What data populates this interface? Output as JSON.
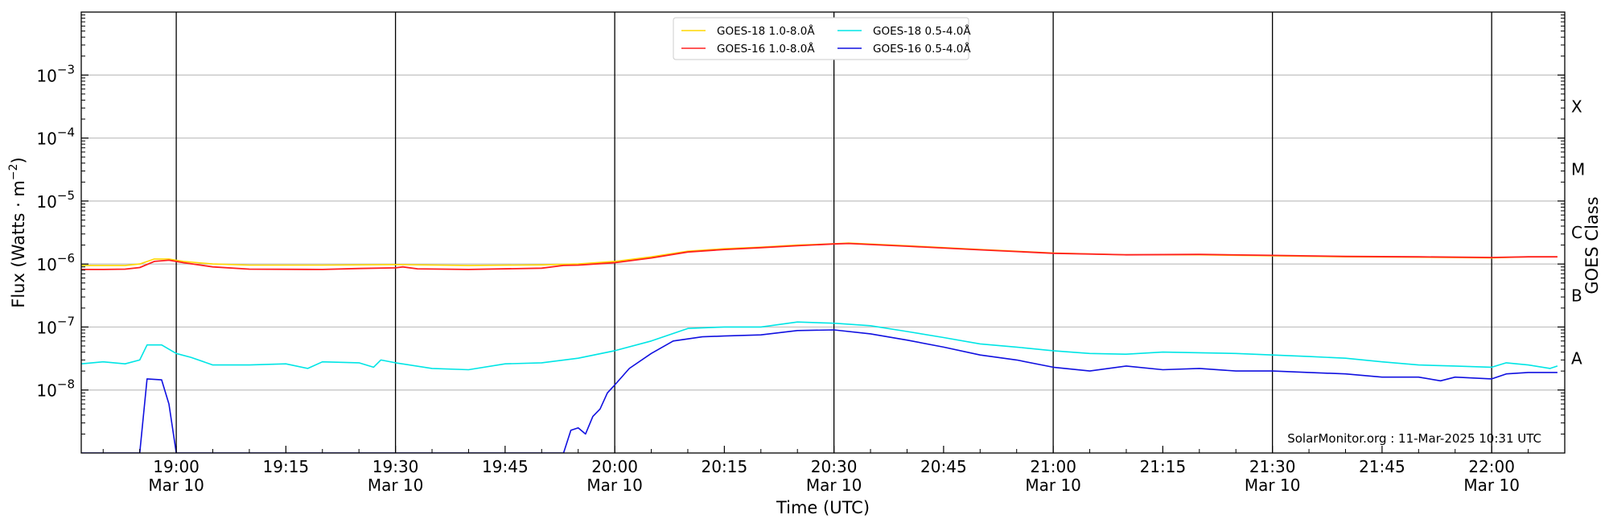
{
  "chart_data": {
    "type": "line",
    "xlabel": "Time (UTC)",
    "ylabel_base": "Flux (Watts · m",
    "ylabel_exp": "−2",
    "ylabel_tail": ")",
    "right_label": "GOES Class",
    "credit": "SolarMonitor.org : 11-Mar-2025 10:31 UTC",
    "xlim": [
      "2025-03-10 18:47",
      "2025-03-10 22:10"
    ],
    "ylim_log10": [
      -9,
      -2
    ],
    "yscale": "log",
    "grid": "horizontal at decades; vertical at half-hours",
    "legend_position": "top-center",
    "x_ticks": [
      {
        "time": "2025-03-10 19:00",
        "line1": "19:00",
        "line2": "Mar 10",
        "major": true
      },
      {
        "time": "2025-03-10 19:15",
        "line1": "19:15",
        "line2": "",
        "major": false
      },
      {
        "time": "2025-03-10 19:30",
        "line1": "19:30",
        "line2": "Mar 10",
        "major": true
      },
      {
        "time": "2025-03-10 19:45",
        "line1": "19:45",
        "line2": "",
        "major": false
      },
      {
        "time": "2025-03-10 20:00",
        "line1": "20:00",
        "line2": "Mar 10",
        "major": true
      },
      {
        "time": "2025-03-10 20:15",
        "line1": "20:15",
        "line2": "",
        "major": false
      },
      {
        "time": "2025-03-10 20:30",
        "line1": "20:30",
        "line2": "Mar 10",
        "major": true
      },
      {
        "time": "2025-03-10 20:45",
        "line1": "20:45",
        "line2": "",
        "major": false
      },
      {
        "time": "2025-03-10 21:00",
        "line1": "21:00",
        "line2": "Mar 10",
        "major": true
      },
      {
        "time": "2025-03-10 21:15",
        "line1": "21:15",
        "line2": "",
        "major": false
      },
      {
        "time": "2025-03-10 21:30",
        "line1": "21:30",
        "line2": "Mar 10",
        "major": true
      },
      {
        "time": "2025-03-10 21:45",
        "line1": "21:45",
        "line2": "",
        "major": false
      },
      {
        "time": "2025-03-10 22:00",
        "line1": "22:00",
        "line2": "Mar 10",
        "major": true
      }
    ],
    "y_ticks": [
      {
        "exp": -8,
        "base": "10",
        "sup": "−8"
      },
      {
        "exp": -7,
        "base": "10",
        "sup": "−7"
      },
      {
        "exp": -6,
        "base": "10",
        "sup": "−6"
      },
      {
        "exp": -5,
        "base": "10",
        "sup": "−5"
      },
      {
        "exp": -4,
        "base": "10",
        "sup": "−4"
      },
      {
        "exp": -3,
        "base": "10",
        "sup": "−3"
      }
    ],
    "goes_classes": [
      {
        "label": "A",
        "log_flux": -7.5
      },
      {
        "label": "B",
        "log_flux": -6.5
      },
      {
        "label": "C",
        "log_flux": -5.5
      },
      {
        "label": "M",
        "log_flux": -4.5
      },
      {
        "label": "X",
        "log_flux": -3.5
      }
    ],
    "series": [
      {
        "name": "GOES-18 1.0-8.0Å",
        "color": "#ffd700",
        "points": [
          [
            "18:47",
            9.5e-07
          ],
          [
            "18:50",
            9.5e-07
          ],
          [
            "18:53",
            9.5e-07
          ],
          [
            "18:55",
            1e-06
          ],
          [
            "18:57",
            1.2e-06
          ],
          [
            "18:59",
            1.2e-06
          ],
          [
            "19:01",
            1.1e-06
          ],
          [
            "19:05",
            1e-06
          ],
          [
            "19:10",
            9.6e-07
          ],
          [
            "19:20",
            9.6e-07
          ],
          [
            "19:30",
            9.8e-07
          ],
          [
            "19:40",
            9.5e-07
          ],
          [
            "19:50",
            9.7e-07
          ],
          [
            "19:55",
            1e-06
          ],
          [
            "20:00",
            1.1e-06
          ],
          [
            "20:05",
            1.3e-06
          ],
          [
            "20:10",
            1.6e-06
          ],
          [
            "20:15",
            1.75e-06
          ],
          [
            "20:20",
            1.85e-06
          ],
          [
            "20:25",
            2e-06
          ],
          [
            "20:30",
            2.1e-06
          ],
          [
            "20:32",
            2.15e-06
          ],
          [
            "20:40",
            1.95e-06
          ],
          [
            "20:50",
            1.7e-06
          ],
          [
            "21:00",
            1.5e-06
          ],
          [
            "21:10",
            1.4e-06
          ],
          [
            "21:20",
            1.4e-06
          ],
          [
            "21:30",
            1.35e-06
          ],
          [
            "21:40",
            1.3e-06
          ],
          [
            "21:50",
            1.28e-06
          ],
          [
            "22:00",
            1.25e-06
          ],
          [
            "22:05",
            1.3e-06
          ],
          [
            "22:09",
            1.3e-06
          ]
        ]
      },
      {
        "name": "GOES-16 1.0-8.0Å",
        "color": "#ff2020",
        "points": [
          [
            "18:47",
            8.2e-07
          ],
          [
            "18:50",
            8.2e-07
          ],
          [
            "18:53",
            8.3e-07
          ],
          [
            "18:55",
            8.8e-07
          ],
          [
            "18:57",
            1.1e-06
          ],
          [
            "18:59",
            1.15e-06
          ],
          [
            "19:01",
            1.05e-06
          ],
          [
            "19:05",
            9e-07
          ],
          [
            "19:10",
            8.3e-07
          ],
          [
            "19:20",
            8.2e-07
          ],
          [
            "19:25",
            8.5e-07
          ],
          [
            "19:30",
            8.7e-07
          ],
          [
            "19:31",
            9e-07
          ],
          [
            "19:33",
            8.4e-07
          ],
          [
            "19:40",
            8.2e-07
          ],
          [
            "19:50",
            8.6e-07
          ],
          [
            "19:53",
            9.5e-07
          ],
          [
            "19:55",
            9.6e-07
          ],
          [
            "20:00",
            1.05e-06
          ],
          [
            "20:05",
            1.25e-06
          ],
          [
            "20:10",
            1.55e-06
          ],
          [
            "20:15",
            1.7e-06
          ],
          [
            "20:20",
            1.82e-06
          ],
          [
            "20:25",
            1.95e-06
          ],
          [
            "20:30",
            2.08e-06
          ],
          [
            "20:32",
            2.12e-06
          ],
          [
            "20:40",
            1.92e-06
          ],
          [
            "20:50",
            1.68e-06
          ],
          [
            "21:00",
            1.48e-06
          ],
          [
            "21:10",
            1.4e-06
          ],
          [
            "21:20",
            1.42e-06
          ],
          [
            "21:30",
            1.37e-06
          ],
          [
            "21:40",
            1.32e-06
          ],
          [
            "21:50",
            1.3e-06
          ],
          [
            "22:00",
            1.27e-06
          ],
          [
            "22:05",
            1.3e-06
          ],
          [
            "22:09",
            1.3e-06
          ]
        ]
      },
      {
        "name": "GOES-18 0.5-4.0Å",
        "color": "#00e5e5",
        "points": [
          [
            "18:47",
            2.6e-08
          ],
          [
            "18:50",
            2.8e-08
          ],
          [
            "18:53",
            2.6e-08
          ],
          [
            "18:55",
            3e-08
          ],
          [
            "18:56",
            5.2e-08
          ],
          [
            "18:58",
            5.2e-08
          ],
          [
            "19:00",
            3.8e-08
          ],
          [
            "19:02",
            3.3e-08
          ],
          [
            "19:05",
            2.5e-08
          ],
          [
            "19:10",
            2.5e-08
          ],
          [
            "19:15",
            2.6e-08
          ],
          [
            "19:18",
            2.2e-08
          ],
          [
            "19:20",
            2.8e-08
          ],
          [
            "19:25",
            2.7e-08
          ],
          [
            "19:27",
            2.3e-08
          ],
          [
            "19:28",
            3e-08
          ],
          [
            "19:30",
            2.7e-08
          ],
          [
            "19:35",
            2.2e-08
          ],
          [
            "19:40",
            2.1e-08
          ],
          [
            "19:45",
            2.6e-08
          ],
          [
            "19:50",
            2.7e-08
          ],
          [
            "19:55",
            3.2e-08
          ],
          [
            "20:00",
            4.2e-08
          ],
          [
            "20:05",
            6e-08
          ],
          [
            "20:10",
            9.5e-08
          ],
          [
            "20:15",
            1e-07
          ],
          [
            "20:20",
            1e-07
          ],
          [
            "20:25",
            1.2e-07
          ],
          [
            "20:30",
            1.15e-07
          ],
          [
            "20:35",
            1.05e-07
          ],
          [
            "20:40",
            8.5e-08
          ],
          [
            "20:45",
            6.8e-08
          ],
          [
            "20:50",
            5.4e-08
          ],
          [
            "20:55",
            4.8e-08
          ],
          [
            "21:00",
            4.2e-08
          ],
          [
            "21:05",
            3.8e-08
          ],
          [
            "21:10",
            3.7e-08
          ],
          [
            "21:15",
            4e-08
          ],
          [
            "21:20",
            3.9e-08
          ],
          [
            "21:25",
            3.8e-08
          ],
          [
            "21:30",
            3.6e-08
          ],
          [
            "21:35",
            3.4e-08
          ],
          [
            "21:40",
            3.2e-08
          ],
          [
            "21:45",
            2.8e-08
          ],
          [
            "21:50",
            2.5e-08
          ],
          [
            "21:55",
            2.4e-08
          ],
          [
            "22:00",
            2.3e-08
          ],
          [
            "22:02",
            2.7e-08
          ],
          [
            "22:05",
            2.5e-08
          ],
          [
            "22:08",
            2.2e-08
          ],
          [
            "22:09",
            2.4e-08
          ]
        ]
      },
      {
        "name": "GOES-16 0.5-4.0Å",
        "color": "#1010e0",
        "points": [
          [
            "18:47",
            1e-09
          ],
          [
            "18:55",
            1e-09
          ],
          [
            "18:56",
            1.5e-08
          ],
          [
            "18:58",
            1.45e-08
          ],
          [
            "18:59",
            6e-09
          ],
          [
            "19:00",
            1e-09
          ],
          [
            "19:53",
            1e-09
          ],
          [
            "19:54",
            2.3e-09
          ],
          [
            "19:55",
            2.5e-09
          ],
          [
            "19:56",
            2e-09
          ],
          [
            "19:57",
            3.8e-09
          ],
          [
            "19:58",
            5e-09
          ],
          [
            "19:59",
            9e-09
          ],
          [
            "20:00",
            1.2e-08
          ],
          [
            "20:02",
            2.2e-08
          ],
          [
            "20:05",
            3.8e-08
          ],
          [
            "20:08",
            6e-08
          ],
          [
            "20:12",
            7e-08
          ],
          [
            "20:15",
            7.2e-08
          ],
          [
            "20:20",
            7.5e-08
          ],
          [
            "20:25",
            8.8e-08
          ],
          [
            "20:30",
            9e-08
          ],
          [
            "20:35",
            7.8e-08
          ],
          [
            "20:40",
            6.2e-08
          ],
          [
            "20:45",
            4.8e-08
          ],
          [
            "20:50",
            3.6e-08
          ],
          [
            "20:55",
            3e-08
          ],
          [
            "21:00",
            2.3e-08
          ],
          [
            "21:05",
            2e-08
          ],
          [
            "21:10",
            2.4e-08
          ],
          [
            "21:15",
            2.1e-08
          ],
          [
            "21:20",
            2.2e-08
          ],
          [
            "21:25",
            2e-08
          ],
          [
            "21:30",
            2e-08
          ],
          [
            "21:35",
            1.9e-08
          ],
          [
            "21:40",
            1.8e-08
          ],
          [
            "21:45",
            1.6e-08
          ],
          [
            "21:50",
            1.6e-08
          ],
          [
            "21:53",
            1.4e-08
          ],
          [
            "21:55",
            1.6e-08
          ],
          [
            "22:00",
            1.5e-08
          ],
          [
            "22:02",
            1.8e-08
          ],
          [
            "22:05",
            1.9e-08
          ],
          [
            "22:09",
            1.9e-08
          ]
        ]
      }
    ]
  }
}
